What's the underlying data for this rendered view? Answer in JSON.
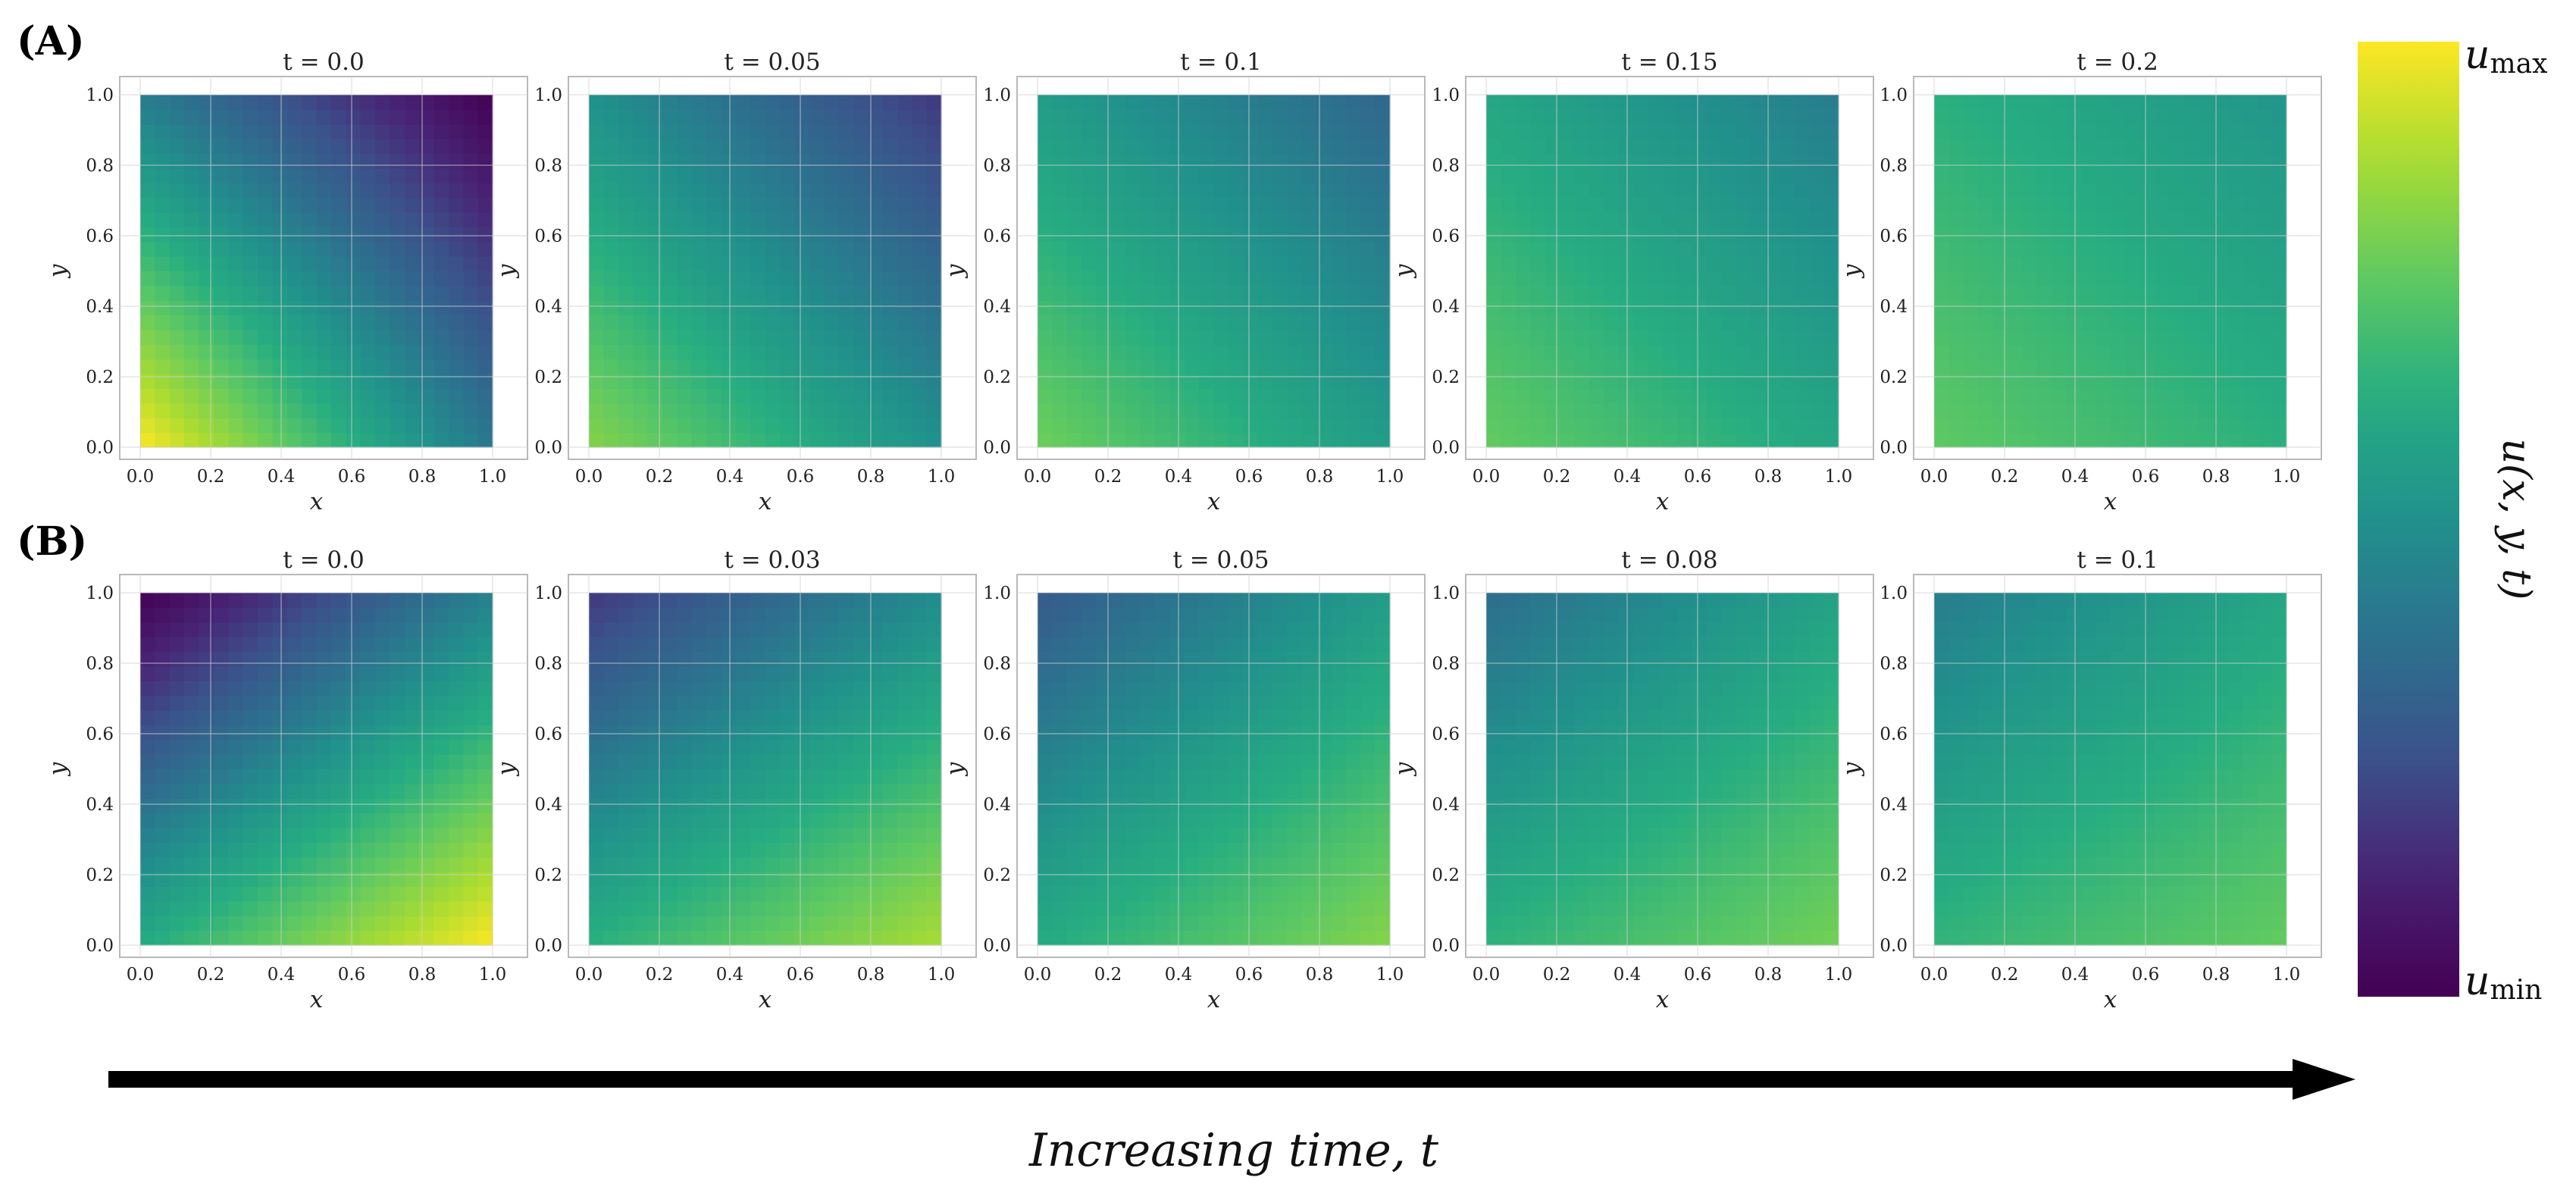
{
  "colors": {
    "colormap": "viridis",
    "arrow": "#000000",
    "grid": "#cfcfcf",
    "frame": "#b9b9b9"
  },
  "rows": [
    {
      "label": "(A)"
    },
    {
      "label": "(B)"
    }
  ],
  "colorbar": {
    "label": "u(x, y, t)",
    "max_label": "u",
    "max_sub": "max",
    "min_label": "u",
    "min_sub": "min"
  },
  "time_arrow": {
    "label": "Increasing time, t"
  },
  "chart_data": [
    {
      "type": "heatmap",
      "row": "A",
      "title": "t = 0.0",
      "xlabel": "x",
      "ylabel": "y",
      "xlim": [
        0,
        1
      ],
      "ylim": [
        0,
        1
      ],
      "xticks": [
        "0.0",
        "0.2",
        "0.4",
        "0.6",
        "0.8",
        "1.0"
      ],
      "yticks": [
        "0.0",
        "0.2",
        "0.4",
        "0.6",
        "0.8",
        "1.0"
      ],
      "field_normalized": {
        "bottom_left": 1.0,
        "bottom_right": 0.4,
        "top_left": 0.42,
        "top_right": 0.0
      }
    },
    {
      "type": "heatmap",
      "row": "A",
      "title": "t = 0.05",
      "xlabel": "x",
      "ylabel": "y",
      "xlim": [
        0,
        1
      ],
      "ylim": [
        0,
        1
      ],
      "xticks": [
        "0.0",
        "0.2",
        "0.4",
        "0.6",
        "0.8",
        "1.0"
      ],
      "yticks": [
        "0.0",
        "0.2",
        "0.4",
        "0.6",
        "0.8",
        "1.0"
      ],
      "field_normalized": {
        "bottom_left": 0.82,
        "bottom_right": 0.5,
        "top_left": 0.5,
        "top_right": 0.18
      }
    },
    {
      "type": "heatmap",
      "row": "A",
      "title": "t = 0.1",
      "xlabel": "x",
      "ylabel": "y",
      "xlim": [
        0,
        1
      ],
      "ylim": [
        0,
        1
      ],
      "xticks": [
        "0.0",
        "0.2",
        "0.4",
        "0.6",
        "0.8",
        "1.0"
      ],
      "yticks": [
        "0.0",
        "0.2",
        "0.4",
        "0.6",
        "0.8",
        "1.0"
      ],
      "field_normalized": {
        "bottom_left": 0.78,
        "bottom_right": 0.55,
        "top_left": 0.55,
        "top_right": 0.33
      }
    },
    {
      "type": "heatmap",
      "row": "A",
      "title": "t = 0.15",
      "xlabel": "x",
      "ylabel": "y",
      "xlim": [
        0,
        1
      ],
      "ylim": [
        0,
        1
      ],
      "xticks": [
        "0.0",
        "0.2",
        "0.4",
        "0.6",
        "0.8",
        "1.0"
      ],
      "yticks": [
        "0.0",
        "0.2",
        "0.4",
        "0.6",
        "0.8",
        "1.0"
      ],
      "field_normalized": {
        "bottom_left": 0.76,
        "bottom_right": 0.6,
        "top_left": 0.6,
        "top_right": 0.42
      }
    },
    {
      "type": "heatmap",
      "row": "A",
      "title": "t = 0.2",
      "xlabel": "x",
      "ylabel": "y",
      "xlim": [
        0,
        1
      ],
      "ylim": [
        0,
        1
      ],
      "xticks": [
        "0.0",
        "0.2",
        "0.4",
        "0.6",
        "0.8",
        "1.0"
      ],
      "yticks": [
        "0.0",
        "0.2",
        "0.4",
        "0.6",
        "0.8",
        "1.0"
      ],
      "field_normalized": {
        "bottom_left": 0.75,
        "bottom_right": 0.64,
        "top_left": 0.64,
        "top_right": 0.52
      }
    },
    {
      "type": "heatmap",
      "row": "B",
      "title": "t = 0.0",
      "xlabel": "x",
      "ylabel": "y",
      "xlim": [
        0,
        1
      ],
      "ylim": [
        0,
        1
      ],
      "xticks": [
        "0.0",
        "0.2",
        "0.4",
        "0.6",
        "0.8",
        "1.0"
      ],
      "yticks": [
        "0.0",
        "0.2",
        "0.4",
        "0.6",
        "0.8",
        "1.0"
      ],
      "field_normalized": {
        "bottom_left": 0.62,
        "bottom_right": 1.0,
        "top_left": 0.0,
        "top_right": 0.44
      }
    },
    {
      "type": "heatmap",
      "row": "B",
      "title": "t = 0.03",
      "xlabel": "x",
      "ylabel": "y",
      "xlim": [
        0,
        1
      ],
      "ylim": [
        0,
        1
      ],
      "xticks": [
        "0.0",
        "0.2",
        "0.4",
        "0.6",
        "0.8",
        "1.0"
      ],
      "yticks": [
        "0.0",
        "0.2",
        "0.4",
        "0.6",
        "0.8",
        "1.0"
      ],
      "field_normalized": {
        "bottom_left": 0.64,
        "bottom_right": 0.88,
        "top_left": 0.18,
        "top_right": 0.48
      }
    },
    {
      "type": "heatmap",
      "row": "B",
      "title": "t = 0.05",
      "xlabel": "x",
      "ylabel": "y",
      "xlim": [
        0,
        1
      ],
      "ylim": [
        0,
        1
      ],
      "xticks": [
        "0.0",
        "0.2",
        "0.4",
        "0.6",
        "0.8",
        "1.0"
      ],
      "yticks": [
        "0.0",
        "0.2",
        "0.4",
        "0.6",
        "0.8",
        "1.0"
      ],
      "field_normalized": {
        "bottom_left": 0.62,
        "bottom_right": 0.82,
        "top_left": 0.28,
        "top_right": 0.55
      }
    },
    {
      "type": "heatmap",
      "row": "B",
      "title": "t = 0.08",
      "xlabel": "x",
      "ylabel": "y",
      "xlim": [
        0,
        1
      ],
      "ylim": [
        0,
        1
      ],
      "xticks": [
        "0.0",
        "0.2",
        "0.4",
        "0.6",
        "0.8",
        "1.0"
      ],
      "yticks": [
        "0.0",
        "0.2",
        "0.4",
        "0.6",
        "0.8",
        "1.0"
      ],
      "field_normalized": {
        "bottom_left": 0.65,
        "bottom_right": 0.79,
        "top_left": 0.36,
        "top_right": 0.58
      }
    },
    {
      "type": "heatmap",
      "row": "B",
      "title": "t = 0.1",
      "xlabel": "x",
      "ylabel": "y",
      "xlim": [
        0,
        1
      ],
      "ylim": [
        0,
        1
      ],
      "xticks": [
        "0.0",
        "0.2",
        "0.4",
        "0.6",
        "0.8",
        "1.0"
      ],
      "yticks": [
        "0.0",
        "0.2",
        "0.4",
        "0.6",
        "0.8",
        "1.0"
      ],
      "field_normalized": {
        "bottom_left": 0.66,
        "bottom_right": 0.76,
        "top_left": 0.42,
        "top_right": 0.6
      }
    }
  ]
}
